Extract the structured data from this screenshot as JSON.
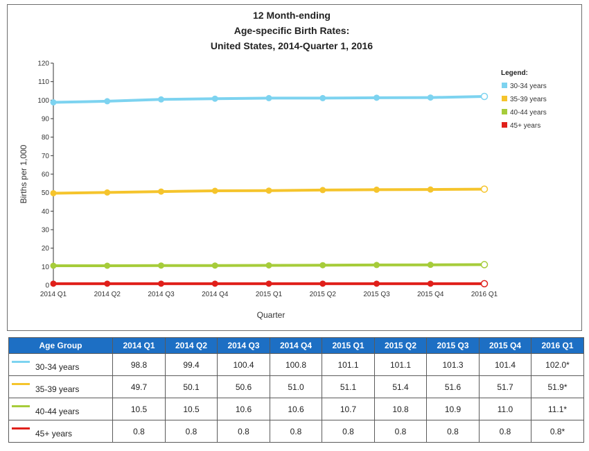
{
  "chart_data": {
    "type": "line",
    "title": [
      "12 Month-ending",
      "Age-specific Birth Rates:",
      "United States, 2014-Quarter 1, 2016"
    ],
    "xlabel": "Quarter",
    "ylabel": "Births per 1,000",
    "ylim": [
      0,
      120
    ],
    "yticks": [
      0,
      10,
      20,
      30,
      40,
      50,
      60,
      70,
      80,
      90,
      100,
      110,
      120
    ],
    "categories": [
      "2014 Q1",
      "2014 Q2",
      "2014 Q3",
      "2014 Q4",
      "2015 Q1",
      "2015 Q2",
      "2015 Q3",
      "2015 Q4",
      "2016 Q1"
    ],
    "legend_title": "Legend:",
    "legend_position": "top-right",
    "grid": false,
    "series": [
      {
        "name": "30-34 years",
        "color": "#7dd3f0",
        "values": [
          98.8,
          99.4,
          100.4,
          100.8,
          101.1,
          101.1,
          101.3,
          101.4,
          102.0
        ]
      },
      {
        "name": "35-39 years",
        "color": "#f5c42c",
        "values": [
          49.7,
          50.1,
          50.6,
          51.0,
          51.1,
          51.4,
          51.6,
          51.7,
          51.9
        ]
      },
      {
        "name": "40-44 years",
        "color": "#a6cc3a",
        "values": [
          10.5,
          10.5,
          10.6,
          10.6,
          10.7,
          10.8,
          10.9,
          11.0,
          11.1
        ]
      },
      {
        "name": "45+ years",
        "color": "#e0201b",
        "values": [
          0.8,
          0.8,
          0.8,
          0.8,
          0.8,
          0.8,
          0.8,
          0.8,
          0.8
        ]
      }
    ]
  },
  "table": {
    "header": [
      "Age Group",
      "2014 Q1",
      "2014 Q2",
      "2014 Q3",
      "2014 Q4",
      "2015 Q1",
      "2015 Q2",
      "2015 Q3",
      "2015 Q4",
      "2016 Q1"
    ],
    "rows": [
      {
        "group": "30-34 years",
        "color": "#7dd3f0",
        "values": [
          "98.8",
          "99.4",
          "100.4",
          "100.8",
          "101.1",
          "101.1",
          "101.3",
          "101.4",
          "102.0*"
        ]
      },
      {
        "group": "35-39 years",
        "color": "#f5c42c",
        "values": [
          "49.7",
          "50.1",
          "50.6",
          "51.0",
          "51.1",
          "51.4",
          "51.6",
          "51.7",
          "51.9*"
        ]
      },
      {
        "group": "40-44 years",
        "color": "#a6cc3a",
        "values": [
          "10.5",
          "10.5",
          "10.6",
          "10.6",
          "10.7",
          "10.8",
          "10.9",
          "11.0",
          "11.1*"
        ]
      },
      {
        "group": "45+ years",
        "color": "#e0201b",
        "values": [
          "0.8",
          "0.8",
          "0.8",
          "0.8",
          "0.8",
          "0.8",
          "0.8",
          "0.8",
          "0.8*"
        ]
      }
    ]
  }
}
